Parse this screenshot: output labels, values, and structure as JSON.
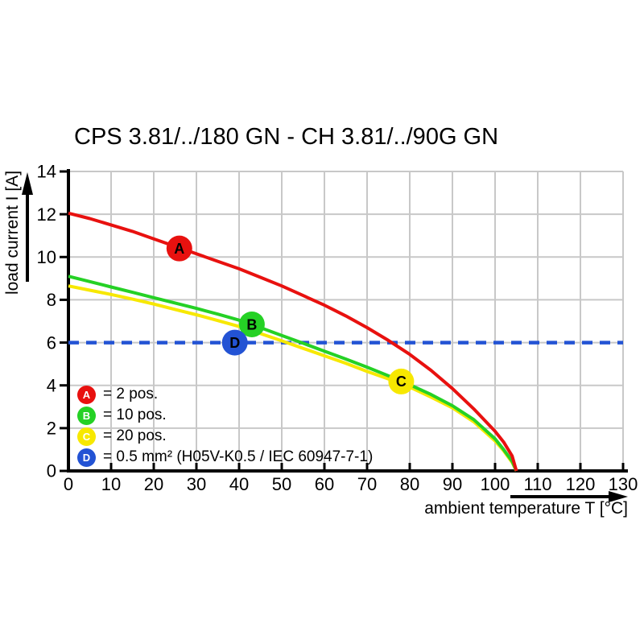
{
  "title": "CPS 3.81/../180 GN - CH 3.81/../90G GN",
  "chart_data": {
    "type": "line",
    "title": "CPS 3.81/../180 GN - CH 3.81/../90G GN",
    "xlabel": "ambient temperature T [°C]",
    "ylabel": "load current I [A]",
    "xlim": [
      0,
      130
    ],
    "ylim": [
      0,
      14
    ],
    "x_ticks": [
      0,
      10,
      20,
      30,
      40,
      50,
      60,
      70,
      80,
      90,
      100,
      110,
      120,
      130
    ],
    "y_ticks": [
      0,
      2,
      4,
      6,
      8,
      10,
      12,
      14
    ],
    "grid": true,
    "legend_position": "lower-left",
    "colors": {
      "grid": "#c8c8c8",
      "axis": "#000000"
    },
    "series": [
      {
        "id": "A",
        "label": "2 pos.",
        "color": "#e8110f",
        "style": "solid",
        "points": [
          [
            0,
            12.05
          ],
          [
            5,
            11.8
          ],
          [
            10,
            11.5
          ],
          [
            15,
            11.2
          ],
          [
            20,
            10.85
          ],
          [
            25,
            10.5
          ],
          [
            30,
            10.15
          ],
          [
            35,
            9.8
          ],
          [
            40,
            9.45
          ],
          [
            45,
            9.05
          ],
          [
            50,
            8.65
          ],
          [
            55,
            8.2
          ],
          [
            60,
            7.75
          ],
          [
            65,
            7.25
          ],
          [
            70,
            6.7
          ],
          [
            75,
            6.1
          ],
          [
            80,
            5.45
          ],
          [
            85,
            4.7
          ],
          [
            90,
            3.85
          ],
          [
            95,
            2.9
          ],
          [
            100,
            1.85
          ],
          [
            102,
            1.35
          ],
          [
            104,
            0.7
          ],
          [
            105,
            0
          ]
        ]
      },
      {
        "id": "B",
        "label": "10 pos.",
        "color": "#25d125",
        "style": "solid",
        "points": [
          [
            0,
            9.1
          ],
          [
            5,
            8.85
          ],
          [
            10,
            8.6
          ],
          [
            15,
            8.35
          ],
          [
            20,
            8.1
          ],
          [
            25,
            7.85
          ],
          [
            30,
            7.6
          ],
          [
            35,
            7.33
          ],
          [
            40,
            7.05
          ],
          [
            45,
            6.7
          ],
          [
            50,
            6.33
          ],
          [
            55,
            5.97
          ],
          [
            60,
            5.6
          ],
          [
            65,
            5.23
          ],
          [
            70,
            4.85
          ],
          [
            75,
            4.45
          ],
          [
            78,
            4.2
          ],
          [
            80,
            4.03
          ],
          [
            85,
            3.57
          ],
          [
            90,
            3.05
          ],
          [
            95,
            2.4
          ],
          [
            100,
            1.5
          ],
          [
            102,
            1.0
          ],
          [
            104,
            0.45
          ],
          [
            105,
            0
          ]
        ]
      },
      {
        "id": "C",
        "label": "20 pos.",
        "color": "#f7e800",
        "style": "solid",
        "points": [
          [
            0,
            8.65
          ],
          [
            5,
            8.45
          ],
          [
            10,
            8.25
          ],
          [
            15,
            8.03
          ],
          [
            20,
            7.8
          ],
          [
            25,
            7.55
          ],
          [
            30,
            7.3
          ],
          [
            35,
            7.03
          ],
          [
            40,
            6.75
          ],
          [
            45,
            6.42
          ],
          [
            50,
            6.08
          ],
          [
            55,
            5.73
          ],
          [
            60,
            5.38
          ],
          [
            65,
            5.03
          ],
          [
            70,
            4.65
          ],
          [
            75,
            4.3
          ],
          [
            78,
            4.08
          ],
          [
            80,
            3.92
          ],
          [
            85,
            3.45
          ],
          [
            90,
            2.95
          ],
          [
            95,
            2.3
          ],
          [
            100,
            1.4
          ],
          [
            102,
            0.95
          ],
          [
            104,
            0.4
          ],
          [
            105,
            0
          ]
        ]
      },
      {
        "id": "D",
        "label": "0.5 mm² (H05V-K0.5 / IEC 60947-7-1)",
        "color": "#2353d4",
        "style": "dashed",
        "points": [
          [
            0,
            6
          ],
          [
            130,
            6
          ]
        ]
      }
    ],
    "markers": [
      {
        "letter": "A",
        "x": 26,
        "y": 10.4,
        "color": "#e8110f"
      },
      {
        "letter": "B",
        "x": 43,
        "y": 6.85,
        "color": "#25d125"
      },
      {
        "letter": "C",
        "x": 78,
        "y": 4.18,
        "color": "#f7e800"
      },
      {
        "letter": "D",
        "x": 39,
        "y": 6.0,
        "color": "#2353d4"
      }
    ],
    "legend": {
      "items": [
        {
          "letter": "A",
          "color": "#e8110f",
          "label": "= 2 pos."
        },
        {
          "letter": "B",
          "color": "#25d125",
          "label": "= 10 pos."
        },
        {
          "letter": "C",
          "color": "#f7e800",
          "label": "= 20 pos."
        },
        {
          "letter": "D",
          "color": "#2353d4",
          "label": "= 0.5 mm² (H05V-K0.5 / IEC 60947-7-1)"
        }
      ]
    }
  }
}
